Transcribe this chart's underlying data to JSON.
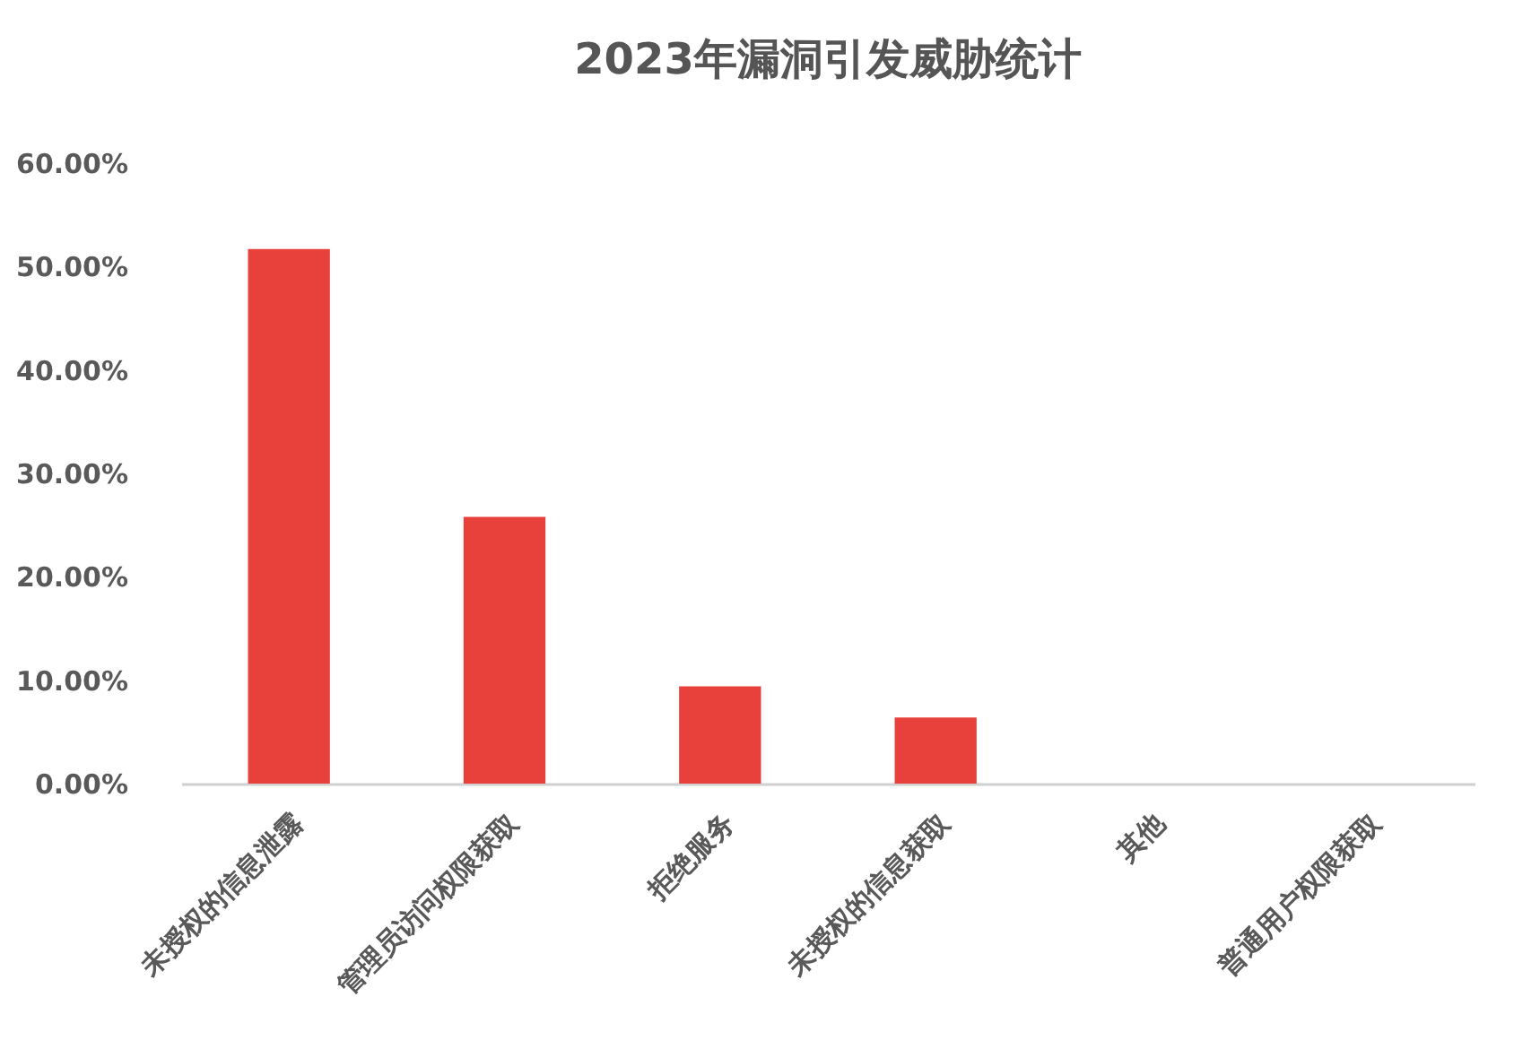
{
  "chart_data": {
    "type": "bar",
    "title": "2023年漏洞引发威胁统计",
    "categories": [
      "未授权的信息泄露",
      "管理员访问权限获取",
      "拒绝服务",
      "未授权的信息获取",
      "其他",
      "普通用户权限获取"
    ],
    "values": [
      51.7,
      25.8,
      9.4,
      6.4,
      0,
      0
    ],
    "color": "#e8403a",
    "ylim": [
      0,
      60
    ],
    "yticks": [
      {
        "value": 0,
        "label": "0.00%"
      },
      {
        "value": 10,
        "label": "10.00%"
      },
      {
        "value": 20,
        "label": "20.00%"
      },
      {
        "value": 30,
        "label": "30.00%"
      },
      {
        "value": 40,
        "label": "40.00%"
      },
      {
        "value": 50,
        "label": "50.00%"
      },
      {
        "value": 60,
        "label": "60.00%"
      }
    ],
    "grid": false
  }
}
